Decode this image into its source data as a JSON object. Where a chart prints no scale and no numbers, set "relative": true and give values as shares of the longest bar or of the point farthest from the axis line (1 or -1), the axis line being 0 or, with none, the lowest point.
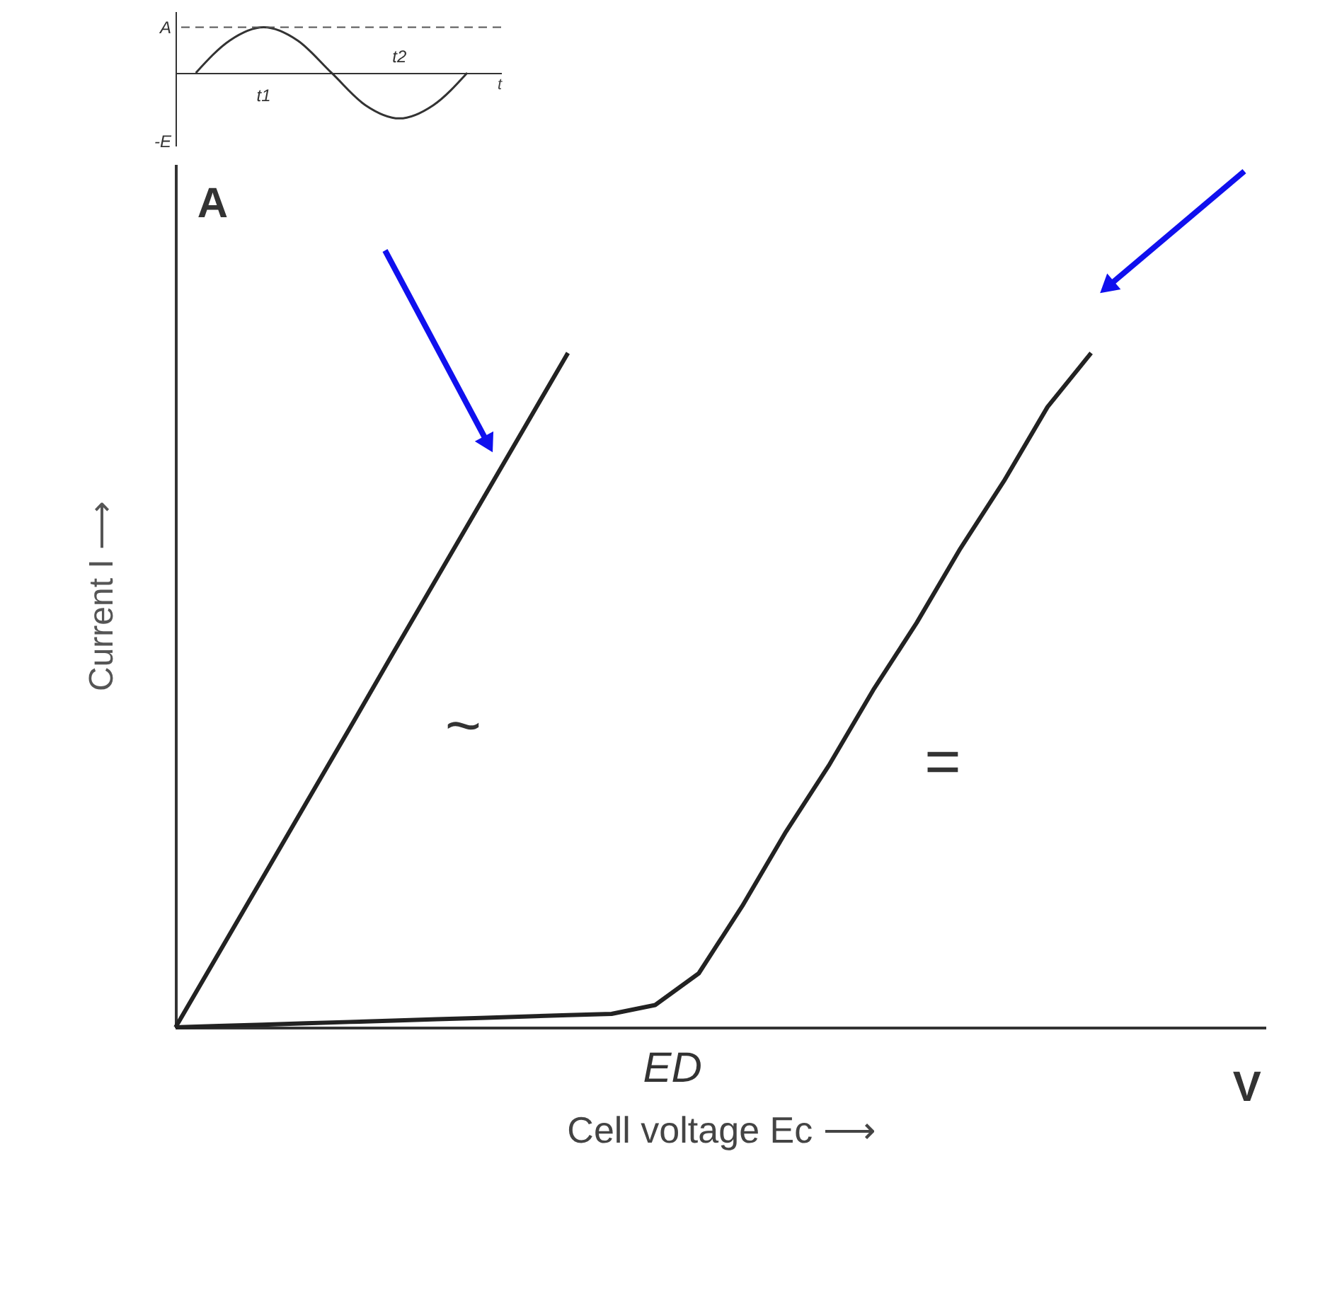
{
  "chart_data": [
    {
      "type": "line",
      "relative": true,
      "xlabel": "t",
      "categories": [
        null,
        null,
        null,
        null,
        null,
        null,
        null,
        null,
        null
      ],
      "values": [
        0,
        0.71,
        1,
        0.71,
        0,
        -0.71,
        -1,
        -0.71,
        0
      ],
      "color": "#333333",
      "annotations": [
        "A",
        "-E",
        "t1",
        "t2"
      ],
      "ref_lines": [
        {
          "axis": "y",
          "value": 1,
          "line_style": "dashed",
          "color": "#555555"
        }
      ],
      "grid": false
    },
    {
      "type": "line",
      "relative": true,
      "xlabel": "Cell voltage Ec ⟶",
      "ylabel": "Current I ⟶",
      "annotations": [
        "A",
        "V",
        "ED"
      ],
      "categories": [
        null,
        null,
        null,
        null,
        null,
        null,
        null,
        null,
        null,
        null,
        null,
        null,
        null,
        null,
        null,
        null,
        null,
        null,
        null,
        null,
        null,
        null
      ],
      "series": [
        {
          "name": "~",
          "color": "#222222",
          "values": [
            0,
            0.111,
            0.222,
            0.333,
            0.444,
            0.556,
            0.667,
            0.778,
            0.889,
            1,
            null,
            null,
            null,
            null,
            null,
            null,
            null,
            null,
            null,
            null,
            null,
            null
          ]
        },
        {
          "name": "=",
          "color": "#222222",
          "values": [
            0,
            0.002,
            0.004,
            0.006,
            0.008,
            0.01,
            0.012,
            0.014,
            0.016,
            0.018,
            0.02,
            0.033,
            0.08,
            0.18,
            0.29,
            0.39,
            0.5,
            0.6,
            0.71,
            0.81,
            0.92,
            1
          ]
        }
      ],
      "grid": false
    }
  ]
}
